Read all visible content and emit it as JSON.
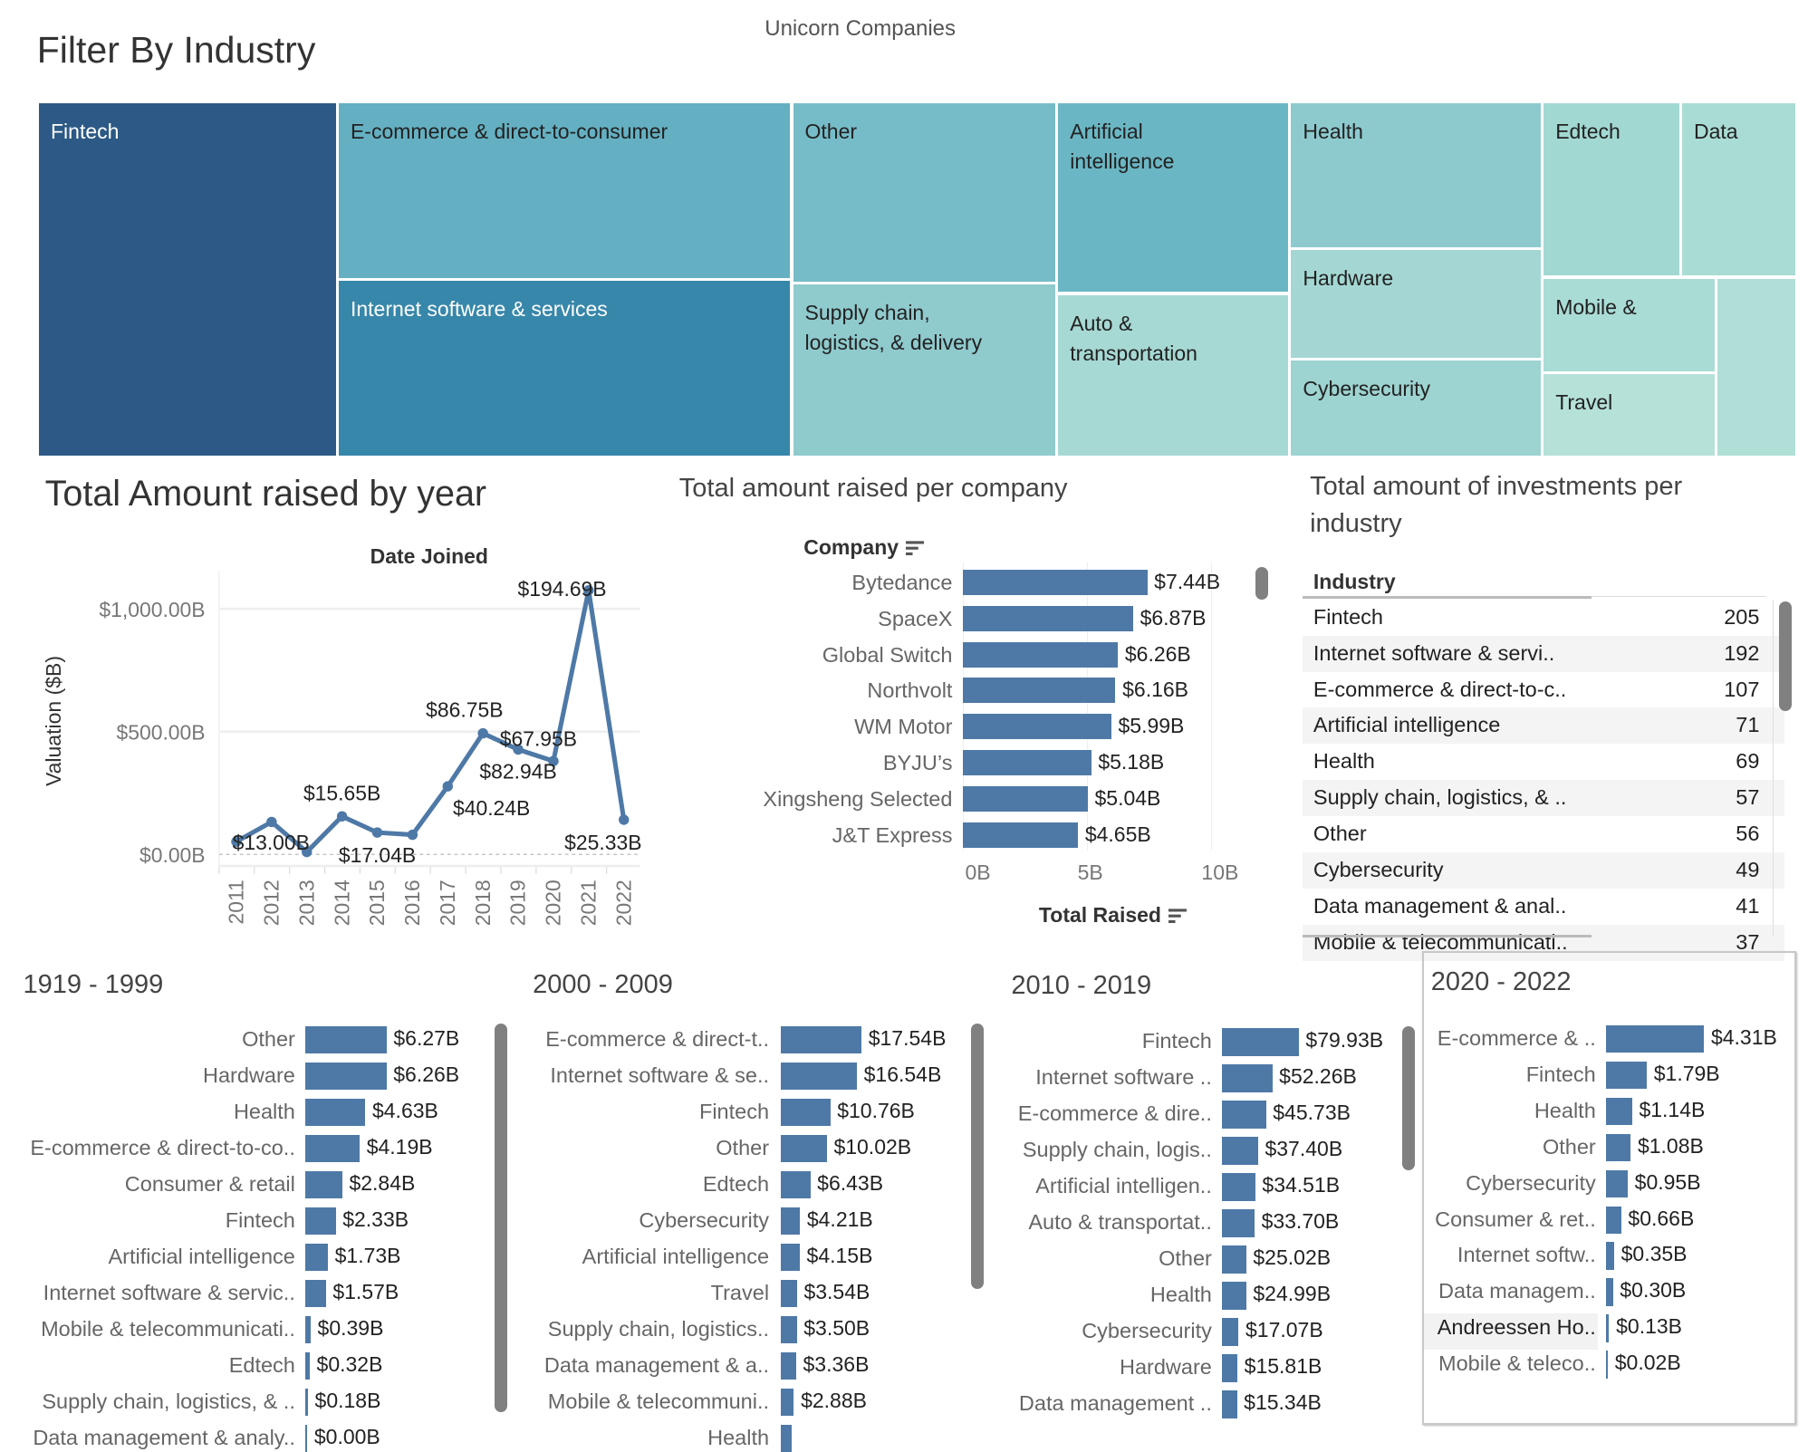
{
  "dashboard_title": "Unicorn Companies",
  "filter_title": "Filter By Industry",
  "treemap": {
    "cells": [
      {
        "label": "Fintech",
        "color": "#2c5985"
      },
      {
        "label": "E-commerce & direct-to-consumer",
        "color": "#64b0c2"
      },
      {
        "label": "Internet software & services",
        "color": "#3787aa"
      },
      {
        "label": "Other",
        "color": "#76bcc8"
      },
      {
        "label": "Supply chain, logistics, & delivery",
        "color": "#8fcacd"
      },
      {
        "label": "Artificial intelligence",
        "color": "#6bb6c4"
      },
      {
        "label": "Auto & transportation",
        "color": "#a7d9d4"
      },
      {
        "label": "Health",
        "color": "#8dcace"
      },
      {
        "label": "Hardware",
        "color": "#a4d7d3"
      },
      {
        "label": "Cybersecurity",
        "color": "#9dd3d0"
      },
      {
        "label": "Edtech",
        "color": "#a2d8d2"
      },
      {
        "label": "Data",
        "color": "#a9dcd5"
      },
      {
        "label": "Mobile &",
        "color": "#a9dcd5"
      },
      {
        "label": "Travel",
        "color": "#b5e1d9"
      },
      {
        "label": "",
        "color": "#b0dfd7"
      }
    ]
  },
  "chart_data": [
    {
      "type": "line",
      "title": "Total Amount raised by year",
      "xlabel": "Date Joined",
      "ylabel": "Valuation ($B)",
      "x": [
        "2011",
        "2012",
        "2013",
        "2014",
        "2015",
        "2016",
        "2017",
        "2018",
        "2019",
        "2020",
        "2021",
        "2022"
      ],
      "values": [
        52,
        132,
        10,
        155,
        89,
        80,
        277,
        493,
        427,
        380,
        1075,
        141
      ],
      "yticks": [
        "$0.00B",
        "$500.00B",
        "$1,000.00B"
      ],
      "ytick_values": [
        0,
        500,
        1000
      ],
      "ylim": [
        -40,
        1100
      ],
      "grid": true,
      "color": "#4e79a7",
      "point_labels": [
        {
          "x": "2013",
          "text": "$13.00B"
        },
        {
          "x": "2014",
          "text": "$15.65B"
        },
        {
          "x": "2015",
          "text": "$17.04B"
        },
        {
          "x": "2017",
          "text": "$40.24B"
        },
        {
          "x": "2018",
          "text": "$86.75B"
        },
        {
          "x": "2019",
          "text": "$82.94B"
        },
        {
          "x": "2020",
          "text": "$67.95B"
        },
        {
          "x": "2021",
          "text": "$194.69B"
        },
        {
          "x": "2022",
          "text": "$25.33B"
        }
      ]
    },
    {
      "type": "bar",
      "title": "Total amount raised per company",
      "ylabel": "Company",
      "xlabel": "Total Raised",
      "categories": [
        "Bytedance",
        "SpaceX",
        "Global Switch",
        "Northvolt",
        "WM Motor",
        "BYJU’s",
        "Xingsheng Selected",
        "J&T Express"
      ],
      "values": [
        7.44,
        6.87,
        6.26,
        6.16,
        5.99,
        5.18,
        5.04,
        4.65
      ],
      "labels": [
        "$7.44B",
        "$6.87B",
        "$6.26B",
        "$6.16B",
        "$5.99B",
        "$5.18B",
        "$5.04B",
        "$4.65B"
      ],
      "xticks": [
        "0B",
        "5B",
        "10B"
      ],
      "xtick_values": [
        0,
        5,
        10
      ],
      "color": "#4e79a7"
    },
    {
      "type": "bar",
      "title": "1919 - 1999",
      "categories": [
        "Other",
        "Hardware",
        "Health",
        "E-commerce & direct-to-co..",
        "Consumer & retail",
        "Fintech",
        "Artificial intelligence",
        "Internet software & servic..",
        "Mobile & telecommunicati..",
        "Edtech",
        "Supply chain, logistics, & ..",
        "Data management & analy.."
      ],
      "values": [
        6.27,
        6.26,
        4.63,
        4.19,
        2.84,
        2.33,
        1.73,
        1.57,
        0.39,
        0.32,
        0.18,
        0.0
      ],
      "labels": [
        "$6.27B",
        "$6.26B",
        "$4.63B",
        "$4.19B",
        "$2.84B",
        "$2.33B",
        "$1.73B",
        "$1.57B",
        "$0.39B",
        "$0.32B",
        "$0.18B",
        "$0.00B"
      ],
      "color": "#4e79a7"
    },
    {
      "type": "bar",
      "title": "2000 - 2009",
      "categories": [
        "E-commerce & direct-t..",
        "Internet software & se..",
        "Fintech",
        "Other",
        "Edtech",
        "Cybersecurity",
        "Artificial intelligence",
        "Travel",
        "Supply chain, logistics..",
        "Data management & a..",
        "Mobile & telecommuni..",
        "Health"
      ],
      "values": [
        17.54,
        16.54,
        10.76,
        10.02,
        6.43,
        4.21,
        4.15,
        3.54,
        3.5,
        3.36,
        2.88,
        2.5
      ],
      "labels": [
        "$17.54B",
        "$16.54B",
        "$10.76B",
        "$10.02B",
        "$6.43B",
        "$4.21B",
        "$4.15B",
        "$3.54B",
        "$3.50B",
        "$3.36B",
        "$2.88B",
        ""
      ],
      "color": "#4e79a7"
    },
    {
      "type": "bar",
      "title": "2010 - 2019",
      "categories": [
        "Fintech",
        "Internet software ..",
        "E-commerce & dire..",
        "Supply chain, logis..",
        "Artificial intelligen..",
        "Auto & transportat..",
        "Other",
        "Health",
        "Cybersecurity",
        "Hardware",
        "Data management .."
      ],
      "values": [
        79.93,
        52.26,
        45.73,
        37.4,
        34.51,
        33.7,
        25.02,
        24.99,
        17.07,
        15.81,
        15.34
      ],
      "labels": [
        "$79.93B",
        "$52.26B",
        "$45.73B",
        "$37.40B",
        "$34.51B",
        "$33.70B",
        "$25.02B",
        "$24.99B",
        "$17.07B",
        "$15.81B",
        "$15.34B"
      ],
      "color": "#4e79a7"
    },
    {
      "type": "bar",
      "title": "2020 - 2022",
      "categories": [
        "E-commerce & ..",
        "Fintech",
        "Health",
        "Other",
        "Cybersecurity",
        "Consumer & ret..",
        "Internet softw..",
        "Data managem..",
        "Andreessen Ho..",
        "Mobile & teleco.."
      ],
      "values": [
        4.31,
        1.79,
        1.14,
        1.08,
        0.95,
        0.66,
        0.35,
        0.3,
        0.13,
        0.02
      ],
      "labels": [
        "$4.31B",
        "$1.79B",
        "$1.14B",
        "$1.08B",
        "$0.95B",
        "$0.66B",
        "$0.35B",
        "$0.30B",
        "$0.13B",
        "$0.02B"
      ],
      "highlighted": "Andreessen Ho..",
      "color": "#4e79a7"
    }
  ],
  "industry_table": {
    "title": "Total amount of investments per industry",
    "header": "Industry",
    "rows": [
      {
        "industry": "Fintech",
        "count": "205"
      },
      {
        "industry": "Internet software & servi..",
        "count": "192"
      },
      {
        "industry": "E-commerce & direct-to-c..",
        "count": "107"
      },
      {
        "industry": "Artificial intelligence",
        "count": "71"
      },
      {
        "industry": "Health",
        "count": "69"
      },
      {
        "industry": "Supply chain, logistics, & ..",
        "count": "57"
      },
      {
        "industry": "Other",
        "count": "56"
      },
      {
        "industry": "Cybersecurity",
        "count": "49"
      },
      {
        "industry": "Data management & anal..",
        "count": "41"
      },
      {
        "industry": "Mobile & telecommunicati..",
        "count": "37"
      }
    ]
  }
}
